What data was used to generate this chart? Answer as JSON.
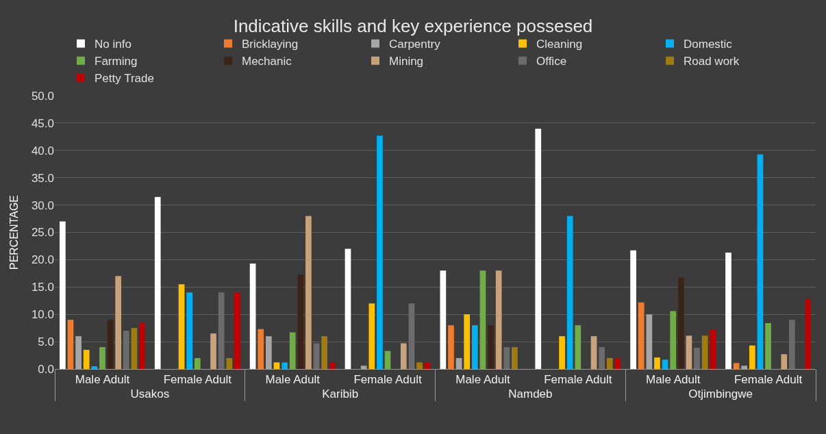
{
  "chart_data": {
    "type": "bar",
    "title": "Indicative skills and key experience possesed",
    "ylabel": "PERCENTAGE",
    "categories": [
      "Male Adult",
      "Female Adult",
      "Male Adult",
      "Female Adult",
      "Male Adult",
      "Female Adult",
      "Male Adult",
      "Female Adult"
    ],
    "annotations": [
      "Usakos",
      "Karibib",
      "Namdeb",
      "Otjimbingwe"
    ],
    "series": [
      {
        "name": "No info",
        "color": "#ffffff",
        "values": [
          27,
          31.5,
          19.3,
          22,
          18,
          44,
          21.7,
          21.3
        ]
      },
      {
        "name": "Bricklaying",
        "color": "#ed7d31",
        "values": [
          9,
          0,
          7.3,
          0,
          8,
          0,
          12.2,
          1.1
        ]
      },
      {
        "name": "Carpentry",
        "color": "#a5a5a5",
        "values": [
          6,
          0,
          6,
          0.6,
          2,
          0,
          10,
          0.6
        ]
      },
      {
        "name": "Cleaning",
        "color": "#ffc000",
        "values": [
          3.5,
          15.5,
          1.2,
          12,
          10,
          6,
          2.1,
          4.3
        ]
      },
      {
        "name": "Domestic",
        "color": "#00b0f0",
        "values": [
          0.5,
          14,
          1.2,
          42.7,
          8,
          28,
          1.7,
          39.3
        ]
      },
      {
        "name": "Farming",
        "color": "#70ad47",
        "values": [
          4,
          2,
          6.7,
          3.3,
          18,
          8,
          10.6,
          8.4
        ]
      },
      {
        "name": "Mechanic",
        "color": "#3b2417",
        "values": [
          9,
          0,
          17.3,
          0,
          8,
          0,
          16.7,
          0
        ]
      },
      {
        "name": "Mining",
        "color": "#c8a27a",
        "values": [
          17,
          6.5,
          28,
          4.7,
          18,
          6,
          6.1,
          2.7
        ]
      },
      {
        "name": "Office",
        "color": "#6b6b6b",
        "values": [
          7,
          14,
          4.7,
          12,
          4,
          4,
          3.9,
          9
        ]
      },
      {
        "name": "Road work",
        "color": "#a07c10",
        "values": [
          7.5,
          2,
          6,
          1.2,
          4,
          2,
          6.1,
          0
        ]
      },
      {
        "name": "Petty Trade",
        "color": "#c00000",
        "values": [
          8.5,
          14,
          1.2,
          1.2,
          0,
          2,
          7.2,
          12.8
        ]
      }
    ],
    "ylim": [
      0,
      50
    ],
    "yticks": [
      {
        "value": 0,
        "label": "0.0"
      },
      {
        "value": 5,
        "label": "5.0"
      },
      {
        "value": 10,
        "label": "10.0"
      },
      {
        "value": 15,
        "label": "15.0"
      },
      {
        "value": 20,
        "label": "20.0"
      },
      {
        "value": 25,
        "label": "25.0"
      },
      {
        "value": 30,
        "label": "30.0"
      },
      {
        "value": 35,
        "label": "35.0"
      },
      {
        "value": 40,
        "label": "40.0"
      },
      {
        "value": 45,
        "label": "45.0"
      },
      {
        "value": 50,
        "label": "50.0"
      }
    ],
    "grid": "y",
    "legend": "top"
  }
}
